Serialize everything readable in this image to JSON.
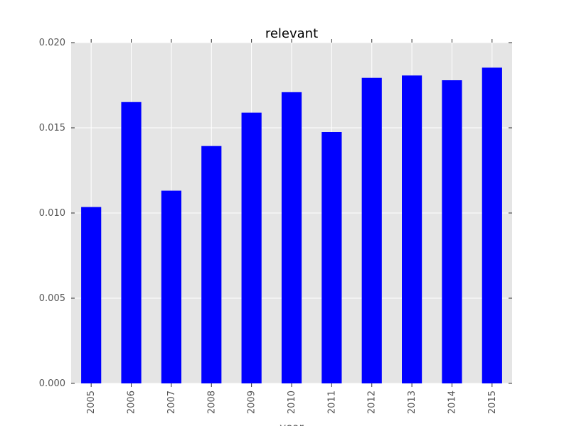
{
  "chart_data": {
    "type": "bar",
    "title": "relevant",
    "xlabel": "year",
    "ylabel": "",
    "categories": [
      "2005",
      "2006",
      "2007",
      "2008",
      "2009",
      "2010",
      "2011",
      "2012",
      "2013",
      "2014",
      "2015"
    ],
    "values": [
      0.01035,
      0.01651,
      0.01131,
      0.01393,
      0.01589,
      0.01709,
      0.01475,
      0.01793,
      0.01807,
      0.01779,
      0.01853
    ],
    "ylim": [
      0,
      0.02
    ],
    "yticks": [
      0.0,
      0.005,
      0.01,
      0.015,
      0.02
    ],
    "ytick_labels": [
      "0.000",
      "0.005",
      "0.010",
      "0.015",
      "0.020"
    ],
    "grid": true,
    "legend": "none",
    "colors": {
      "bar": "#0000ff",
      "plot_background": "#e5e5e5",
      "grid": "#ffffff",
      "tick_text": "#555555"
    }
  }
}
